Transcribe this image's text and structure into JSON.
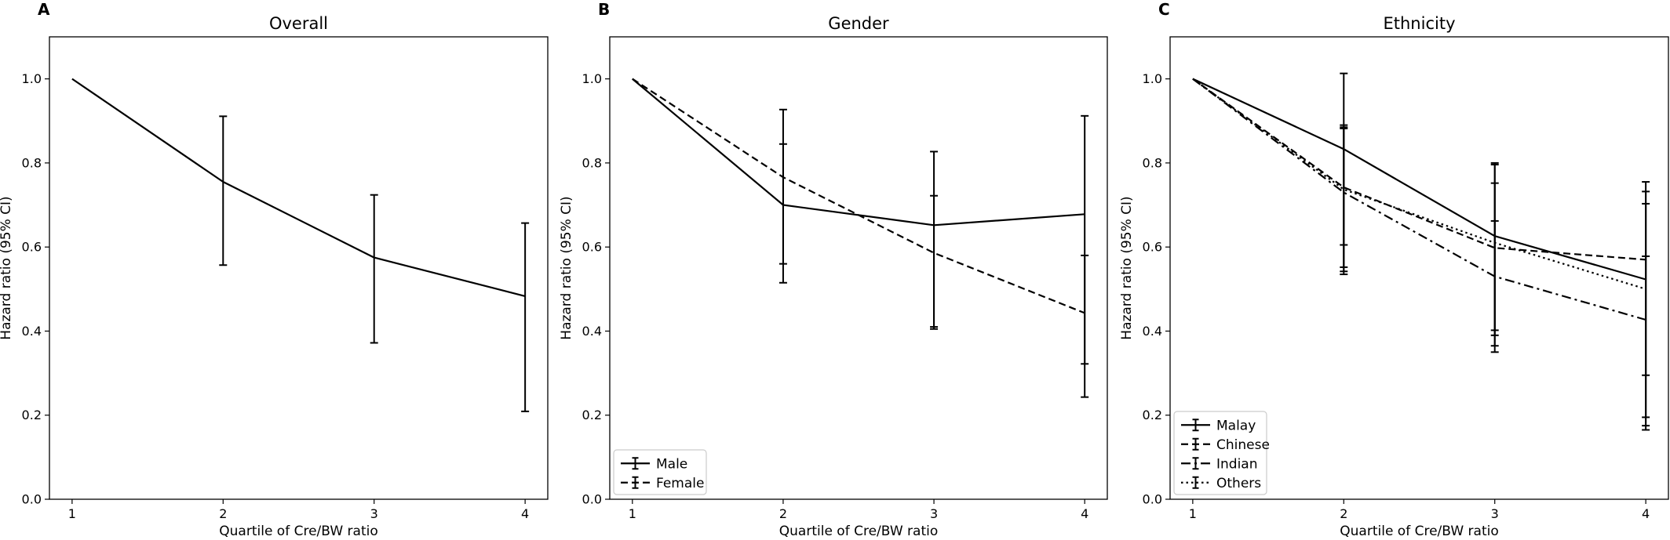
{
  "chart_data": [
    {
      "type": "line",
      "panel_letter": "A",
      "title": "Overall",
      "xlabel": "Quartile of Cre/BW ratio",
      "ylabel": "Hazard ratio (95% CI)",
      "x": [
        1,
        2,
        3,
        4
      ],
      "xticks": [
        "1",
        "2",
        "3",
        "4"
      ],
      "yticks": [
        "0.0",
        "0.2",
        "0.4",
        "0.6",
        "0.8",
        "1.0"
      ],
      "xlim": [
        0.85,
        4.15
      ],
      "ylim": [
        0,
        1.1
      ],
      "legend": "none",
      "series": [
        {
          "style": "solid",
          "values": [
            1.0,
            0.755,
            0.575,
            0.483
          ],
          "ci_lower": [
            null,
            0.557,
            0.372,
            0.209
          ],
          "ci_upper": [
            null,
            0.911,
            0.724,
            0.657
          ]
        }
      ]
    },
    {
      "type": "line",
      "panel_letter": "B",
      "title": "Gender",
      "xlabel": "Quartile of Cre/BW ratio",
      "ylabel": "Hazard ratio (95% CI)",
      "x": [
        1,
        2,
        3,
        4
      ],
      "xticks": [
        "1",
        "2",
        "3",
        "4"
      ],
      "yticks": [
        "0.0",
        "0.2",
        "0.4",
        "0.6",
        "0.8",
        "1.0"
      ],
      "xlim": [
        0.85,
        4.15
      ],
      "ylim": [
        0,
        1.1
      ],
      "legend": "lower left",
      "series": [
        {
          "name": "Male",
          "style": "solid",
          "values": [
            1.0,
            0.7,
            0.652,
            0.678
          ],
          "ci_lower": [
            null,
            0.515,
            0.41,
            0.243
          ],
          "ci_upper": [
            null,
            0.927,
            0.827,
            0.912
          ]
        },
        {
          "name": "Female",
          "style": "dashed",
          "values": [
            1.0,
            0.766,
            0.586,
            0.443
          ],
          "ci_lower": [
            null,
            0.56,
            0.405,
            0.322
          ],
          "ci_upper": [
            null,
            0.845,
            0.722,
            0.58
          ]
        }
      ]
    },
    {
      "type": "line",
      "panel_letter": "C",
      "title": "Ethnicity",
      "xlabel": "Quartile of Cre/BW ratio",
      "ylabel": "Hazard ratio (95% CI)",
      "x": [
        1,
        2,
        3,
        4
      ],
      "xticks": [
        "1",
        "2",
        "3",
        "4"
      ],
      "yticks": [
        "0.0",
        "0.2",
        "0.4",
        "0.6",
        "0.8",
        "1.0"
      ],
      "xlim": [
        0.85,
        4.15
      ],
      "ylim": [
        0,
        1.1
      ],
      "legend": "lower left",
      "series": [
        {
          "name": "Malay",
          "style": "solid",
          "values": [
            1.0,
            0.833,
            0.626,
            0.523
          ],
          "ci_lower": [
            null,
            0.605,
            0.402,
            0.195
          ],
          "ci_upper": [
            null,
            1.013,
            0.8,
            0.755
          ]
        },
        {
          "name": "Chinese",
          "style": "dashed",
          "values": [
            1.0,
            0.742,
            0.598,
            0.57
          ],
          "ci_lower": [
            null,
            0.552,
            0.35,
            0.295
          ],
          "ci_upper": [
            null,
            0.89,
            0.752,
            0.732
          ]
        },
        {
          "name": "Indian",
          "style": "dashdot",
          "values": [
            1.0,
            0.73,
            0.53,
            0.427
          ],
          "ci_lower": [
            null,
            0.535,
            0.39,
            0.165
          ],
          "ci_upper": [
            null,
            0.885,
            0.796,
            0.703
          ]
        },
        {
          "name": "Others",
          "style": "dotted",
          "values": [
            1.0,
            0.737,
            0.61,
            0.5
          ],
          "ci_lower": [
            null,
            0.542,
            0.365,
            0.175
          ],
          "ci_upper": [
            null,
            0.882,
            0.662,
            0.578
          ]
        }
      ]
    }
  ]
}
